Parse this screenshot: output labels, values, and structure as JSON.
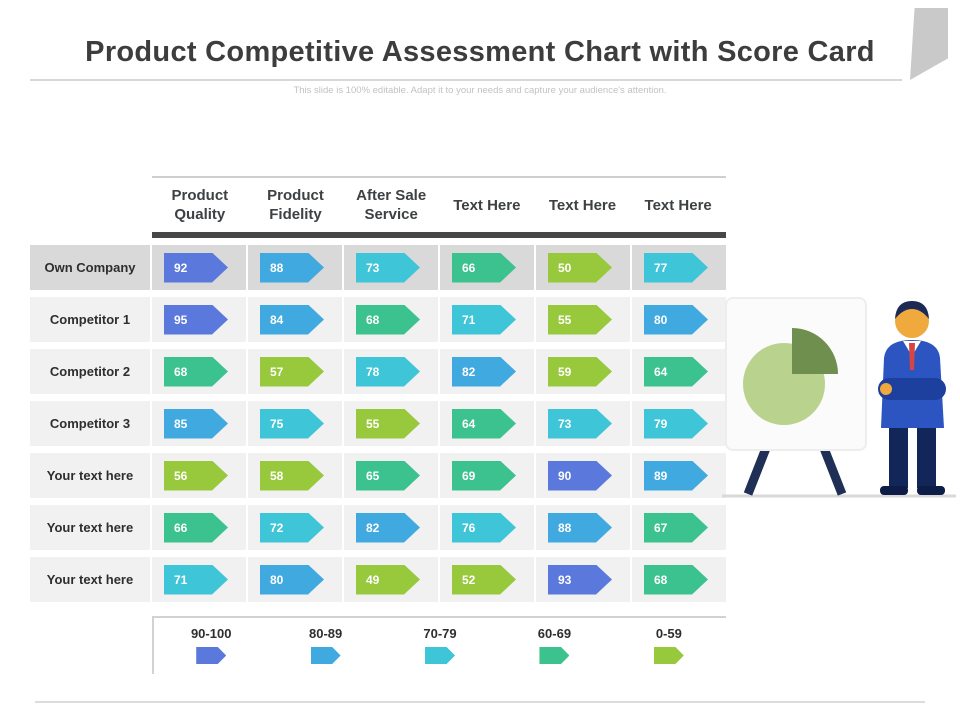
{
  "slide": {
    "title": "Product Competitive Assessment Chart with Score Card",
    "subtitle": "This slide is 100% editable. Adapt it to your needs and capture your audience's attention."
  },
  "chart_data": {
    "type": "table",
    "columns": [
      "Product Quality",
      "Product Fidelity",
      "After Sale Service",
      "Text Here",
      "Text Here",
      "Text Here"
    ],
    "rows": [
      {
        "label": "Own Company",
        "values": [
          92,
          88,
          73,
          66,
          50,
          77
        ]
      },
      {
        "label": "Competitor 1",
        "values": [
          95,
          84,
          68,
          71,
          55,
          80
        ]
      },
      {
        "label": "Competitor 2",
        "values": [
          68,
          57,
          78,
          82,
          59,
          64
        ]
      },
      {
        "label": "Competitor 3",
        "values": [
          85,
          75,
          55,
          64,
          73,
          79
        ]
      },
      {
        "label": "Your text here",
        "values": [
          56,
          58,
          65,
          69,
          90,
          89
        ]
      },
      {
        "label": "Your text here",
        "values": [
          66,
          72,
          82,
          76,
          88,
          67
        ]
      },
      {
        "label": "Your text here",
        "values": [
          71,
          80,
          49,
          52,
          93,
          68
        ]
      }
    ],
    "legend_position": "bottom",
    "value_range": [
      0,
      100
    ]
  },
  "legend": [
    {
      "label": "90-100",
      "min": 90,
      "color": "#5b79dd"
    },
    {
      "label": "80-89",
      "min": 80,
      "color": "#3fa9e0"
    },
    {
      "label": "70-79",
      "min": 70,
      "color": "#3fc5d8"
    },
    {
      "label": "60-69",
      "min": 60,
      "color": "#3bc28e"
    },
    {
      "label": "0-59",
      "min": 0,
      "color": "#98c93c"
    }
  ],
  "styles": {
    "row_highlight_bg": "#d9d9d9",
    "row_bg": "#f1f1f2",
    "header_bar_color": "#474747",
    "accent_suit_blue": "#2c55c2",
    "pie_light_green": "#b9d28e",
    "pie_dark_green": "#6f8f4f"
  }
}
